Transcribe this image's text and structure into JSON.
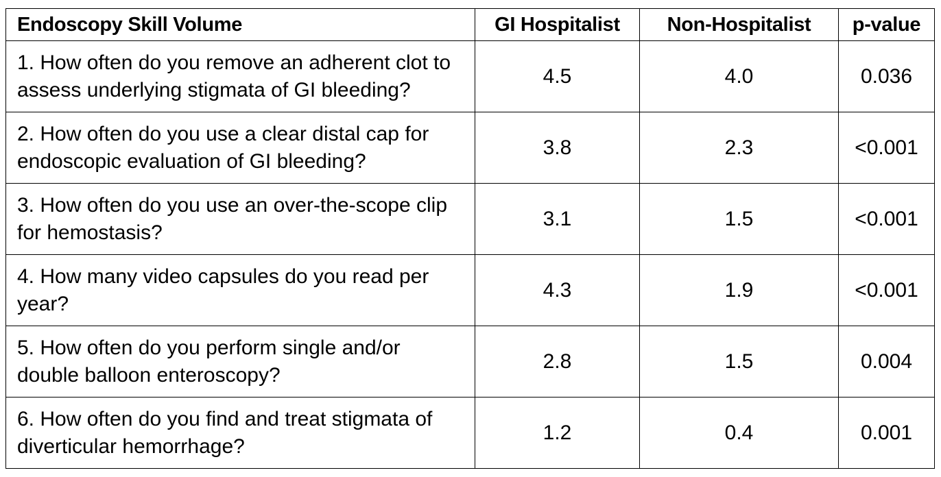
{
  "table": {
    "headers": [
      "Endoscopy Skill Volume",
      "GI Hospitalist",
      "Non-Hospitalist",
      "p-value"
    ],
    "rows": [
      {
        "question": "1. How often do you remove an adherent clot to assess underlying stigmata of GI bleeding?",
        "gi_hospitalist": "4.5",
        "non_hospitalist": "4.0",
        "p_value": "0.036"
      },
      {
        "question": "2. How often do you use a clear distal cap for endoscopic evaluation of GI bleeding?",
        "gi_hospitalist": "3.8",
        "non_hospitalist": "2.3",
        "p_value": "<0.001"
      },
      {
        "question": "3. How often do you use an over-the-scope clip for hemostasis?",
        "gi_hospitalist": "3.1",
        "non_hospitalist": "1.5",
        "p_value": "<0.001"
      },
      {
        "question": "4. How many video capsules do you read per year?",
        "gi_hospitalist": "4.3",
        "non_hospitalist": "1.9",
        "p_value": "<0.001"
      },
      {
        "question": "5. How often do you perform single and/or double balloon enteroscopy?",
        "gi_hospitalist": "2.8",
        "non_hospitalist": "1.5",
        "p_value": "0.004"
      },
      {
        "question": "6. How often do you find and treat stigmata of diverticular hemorrhage?",
        "gi_hospitalist": "1.2",
        "non_hospitalist": "0.4",
        "p_value": "0.001"
      }
    ]
  }
}
